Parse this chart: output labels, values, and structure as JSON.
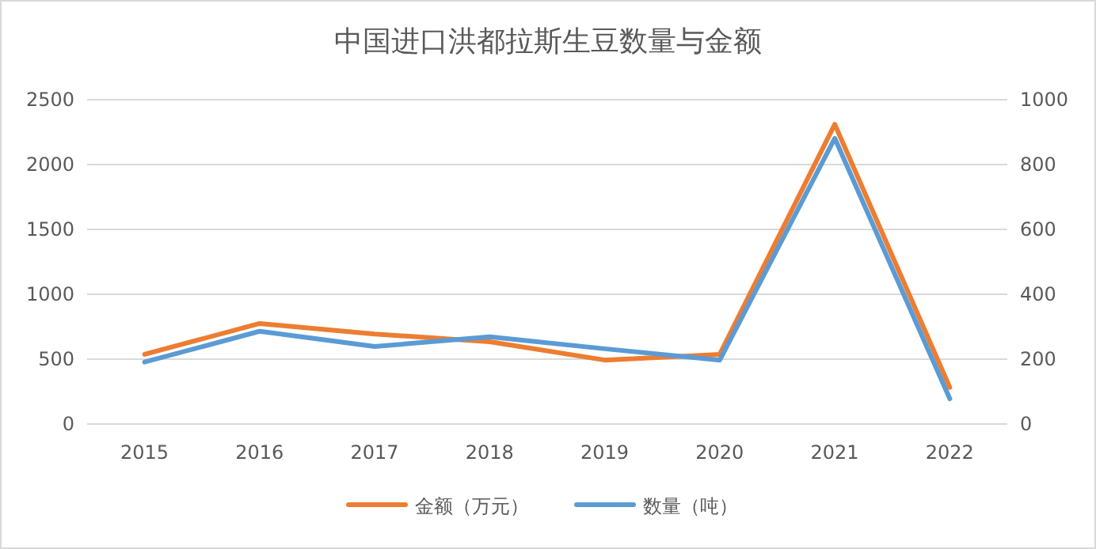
{
  "chart_data": {
    "type": "line",
    "title": "中国进口洪都拉斯生豆数量与金额",
    "categories": [
      "2015",
      "2016",
      "2017",
      "2018",
      "2019",
      "2020",
      "2021",
      "2022"
    ],
    "series": [
      {
        "name": "金额（万元）",
        "color": "#ed7d31",
        "values": [
          537,
          775,
          694,
          634,
          493,
          537,
          2310,
          282
        ]
      },
      {
        "name": "数量（吨）",
        "color": "#5b9bd5",
        "axis": "y2",
        "values": [
          191,
          286,
          239,
          269,
          232,
          197,
          881,
          78
        ]
      }
    ],
    "ylim": [
      0,
      2500
    ],
    "yticks": [
      0,
      500,
      1000,
      1500,
      2000,
      2500
    ],
    "y2lim": [
      0,
      1000
    ],
    "y2ticks": [
      0,
      200,
      400,
      600,
      800,
      1000
    ],
    "grid": "y",
    "legend": "bottom",
    "marker": "none"
  }
}
